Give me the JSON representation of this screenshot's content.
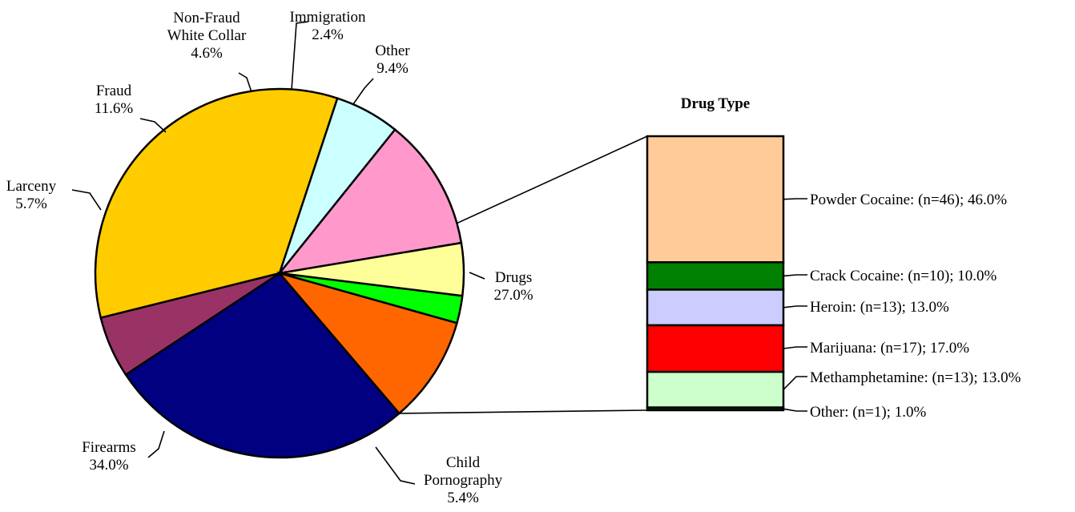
{
  "chart_data": [
    {
      "type": "pie",
      "title": "",
      "slices": [
        {
          "label_lines": [
            "Drugs"
          ],
          "value": 27.0,
          "pct_label": "27.0%",
          "color": "#000080"
        },
        {
          "label_lines": [
            "Child",
            "Pornography"
          ],
          "value": 5.4,
          "pct_label": "5.4%",
          "color": "#993366"
        },
        {
          "label_lines": [
            "Firearms"
          ],
          "value": 34.0,
          "pct_label": "34.0%",
          "color": "#FFCC00"
        },
        {
          "label_lines": [
            "Larceny"
          ],
          "value": 5.7,
          "pct_label": "5.7%",
          "color": "#CCFFFF"
        },
        {
          "label_lines": [
            "Fraud"
          ],
          "value": 11.6,
          "pct_label": "11.6%",
          "color": "#FF99CC"
        },
        {
          "label_lines": [
            "Non-Fraud",
            "White Collar"
          ],
          "value": 4.6,
          "pct_label": "4.6%",
          "color": "#FFFF99"
        },
        {
          "label_lines": [
            "Immigration"
          ],
          "value": 2.4,
          "pct_label": "2.4%",
          "color": "#00FF00"
        },
        {
          "label_lines": [
            "Other"
          ],
          "value": 9.4,
          "pct_label": "9.4%",
          "color": "#FF6600"
        }
      ]
    },
    {
      "type": "bar",
      "subtype": "stacked-100",
      "title": "Drug Type",
      "segments": [
        {
          "name": "Powder Cocaine",
          "n": 46,
          "value": 46.0,
          "label": "Powder Cocaine:  (n=46); 46.0%",
          "color": "#FFCC99"
        },
        {
          "name": "Crack Cocaine",
          "n": 10,
          "value": 10.0,
          "label": "Crack Cocaine:  (n=10); 10.0%",
          "color": "#008000"
        },
        {
          "name": "Heroin",
          "n": 13,
          "value": 13.0,
          "label": "Heroin:  (n=13); 13.0%",
          "color": "#CCCCFF"
        },
        {
          "name": "Marijuana",
          "n": 17,
          "value": 17.0,
          "label": "Marijuana:  (n=17); 17.0%",
          "color": "#FF0000"
        },
        {
          "name": "Methamphetamine",
          "n": 13,
          "value": 13.0,
          "label": "Methamphetamine:  (n=13); 13.0%",
          "color": "#CCFFCC"
        },
        {
          "name": "Other",
          "n": 1,
          "value": 1.0,
          "label": "Other:  (n=1); 1.0%",
          "color": "#003300"
        }
      ]
    }
  ]
}
